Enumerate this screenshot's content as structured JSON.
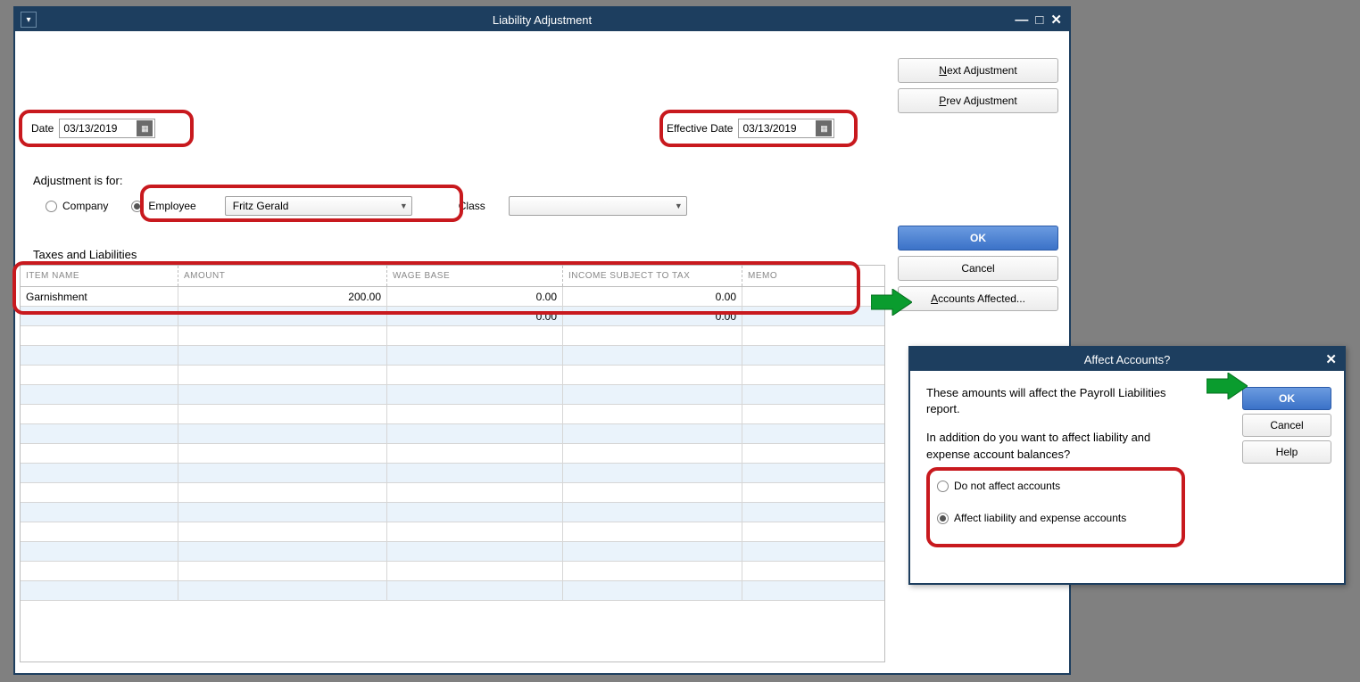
{
  "main": {
    "title": "Liability Adjustment",
    "nav": {
      "next": "Next Adjustment",
      "prev": "Prev Adjustment"
    },
    "date_label": "Date",
    "date_value": "03/13/2019",
    "effective_date_label": "Effective Date",
    "effective_date_value": "03/13/2019",
    "adjustment_label": "Adjustment is for:",
    "radio_company": "Company",
    "radio_employee": "Employee",
    "employee_name": "Fritz Gerald",
    "class_label": "Class",
    "taxes_label": "Taxes and Liabilities",
    "table": {
      "headers": [
        "ITEM NAME",
        "AMOUNT",
        "WAGE BASE",
        "INCOME SUBJECT TO TAX",
        "MEMO"
      ],
      "rows": [
        {
          "item": "Garnishment",
          "amount": "200.00",
          "wage": "0.00",
          "tax": "0.00",
          "memo": ""
        },
        {
          "item": "",
          "amount": "",
          "wage": "0.00",
          "tax": "0.00",
          "memo": ""
        }
      ],
      "blank_rows": 14
    },
    "buttons": {
      "ok": "OK",
      "cancel": "Cancel",
      "accounts": "Accounts Affected..."
    }
  },
  "dialog": {
    "title": "Affect Accounts?",
    "text1": "These amounts will affect the Payroll Liabilities report.",
    "text2": "In addition do you want to affect liability and expense account balances?",
    "option1": "Do not affect accounts",
    "option2": "Affect liability and expense accounts",
    "ok": "OK",
    "cancel": "Cancel",
    "help": "Help"
  },
  "highlights": {
    "color": "#c8191e",
    "arrow_color": "#0a9c2e"
  }
}
